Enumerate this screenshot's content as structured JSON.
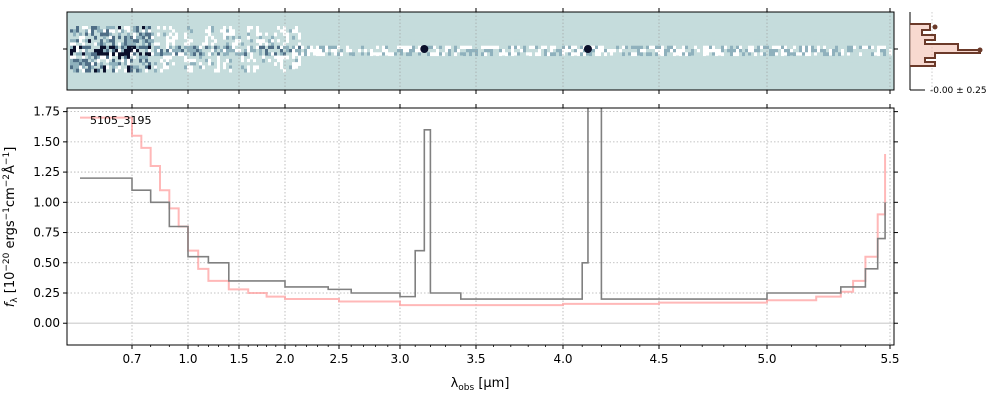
{
  "chart_data": [
    {
      "type": "heatmap",
      "description_role": "2D spectrum",
      "colormap": [
        "#ffffff",
        "#c5dcdc",
        "#8fb1bd",
        "#4f6e86",
        "#0a0f2a"
      ],
      "background_color": "#c5dcdc",
      "features": [
        {
          "kind": "emission-knot",
          "x": 3.16
        },
        {
          "kind": "emission-knot",
          "x": 4.13
        }
      ],
      "ticks_shared_with": "spectrum-x-axis"
    },
    {
      "type": "line",
      "description_role": "spatial profile",
      "annotation": "-0.00 ± 0.25",
      "colors": {
        "profile": "#6b3a2a",
        "fill": "#f4c0b0"
      }
    },
    {
      "type": "line",
      "annotation": "5105_3195",
      "xlabel": "λ_obs [μm]",
      "ylabel": "f_λ [10^-20 ergs^-1 cm^-2 Å^-1]",
      "xlabel_parts": {
        "symbol": "λ",
        "subscript": "obs",
        "unit": " [μm]"
      },
      "ylabel_parts": {
        "symbol": "f",
        "subscript": "λ",
        "unit": " [10",
        "exp": "−20",
        "rest": " ergs",
        "exp2": "−1",
        "rest2": "cm",
        "exp3": "−2",
        "rest3": "Å",
        "exp4": "−1",
        "end": "]"
      },
      "x_scale": "nonlinear (wavelength)",
      "xlim": [
        0.6,
        5.5
      ],
      "ylim": [
        -0.18,
        1.78
      ],
      "xticks": [
        {
          "value": 0.7,
          "label": "0.7"
        },
        {
          "value": 1.0,
          "label": "1.0"
        },
        {
          "value": 1.5,
          "label": "1.5"
        },
        {
          "value": 2.0,
          "label": "2.0"
        },
        {
          "value": 2.5,
          "label": "2.5"
        },
        {
          "value": 3.0,
          "label": "3.0"
        },
        {
          "value": 3.5,
          "label": "3.5"
        },
        {
          "value": 4.0,
          "label": "4.0"
        },
        {
          "value": 4.5,
          "label": "4.5"
        },
        {
          "value": 5.0,
          "label": "5.0"
        },
        {
          "value": 5.5,
          "label": "5.5"
        }
      ],
      "yticks": [
        {
          "value": 0.0,
          "label": "0.00"
        },
        {
          "value": 0.25,
          "label": "0.25"
        },
        {
          "value": 0.5,
          "label": "0.50"
        },
        {
          "value": 0.75,
          "label": "0.75"
        },
        {
          "value": 1.0,
          "label": "1.00"
        },
        {
          "value": 1.25,
          "label": "1.25"
        },
        {
          "value": 1.5,
          "label": "1.50"
        },
        {
          "value": 1.75,
          "label": "1.75"
        }
      ],
      "grid": true,
      "series": [
        {
          "role": "flux",
          "style": "steps",
          "color": "#808080",
          "x": [
            0.62,
            0.7,
            0.8,
            0.9,
            1.0,
            1.2,
            1.4,
            1.6,
            1.8,
            2.0,
            2.2,
            2.4,
            2.6,
            2.8,
            3.0,
            3.1,
            3.16,
            3.2,
            3.4,
            3.6,
            3.8,
            4.0,
            4.1,
            4.13,
            4.2,
            4.4,
            4.6,
            4.8,
            5.0,
            5.2,
            5.3,
            5.4,
            5.45,
            5.48
          ],
          "y": [
            1.2,
            1.1,
            1.0,
            0.8,
            0.55,
            0.5,
            0.35,
            0.35,
            0.35,
            0.3,
            0.3,
            0.28,
            0.25,
            0.25,
            0.22,
            0.6,
            1.6,
            0.25,
            0.2,
            0.2,
            0.2,
            0.2,
            0.5,
            1.8,
            0.2,
            0.2,
            0.2,
            0.2,
            0.25,
            0.25,
            0.3,
            0.45,
            0.7,
            1.0
          ]
        },
        {
          "role": "model",
          "style": "steps",
          "color": "#ff9a9a",
          "x": [
            0.62,
            0.7,
            0.75,
            0.8,
            0.85,
            0.9,
            0.95,
            1.0,
            1.1,
            1.2,
            1.4,
            1.6,
            1.8,
            2.0,
            2.5,
            3.0,
            3.5,
            4.0,
            4.5,
            5.0,
            5.2,
            5.3,
            5.35,
            5.4,
            5.45,
            5.48
          ],
          "y": [
            1.7,
            1.55,
            1.45,
            1.3,
            1.1,
            0.95,
            0.8,
            0.6,
            0.45,
            0.35,
            0.28,
            0.25,
            0.22,
            0.2,
            0.18,
            0.15,
            0.15,
            0.16,
            0.17,
            0.19,
            0.22,
            0.26,
            0.35,
            0.55,
            0.9,
            1.4
          ]
        }
      ]
    }
  ]
}
